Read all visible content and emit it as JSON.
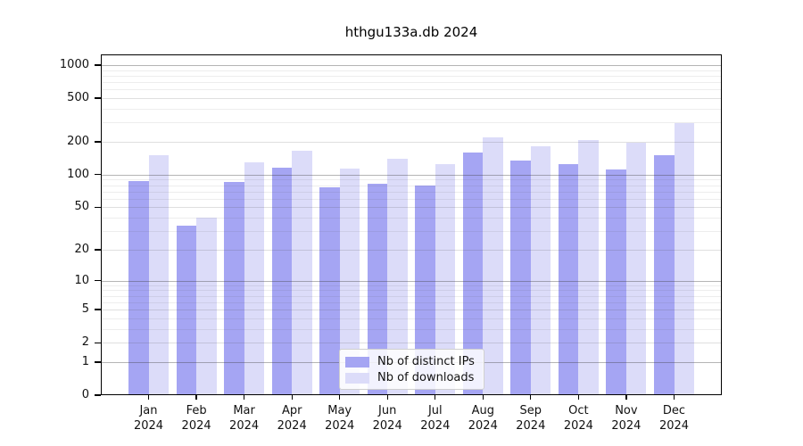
{
  "title": "hthgu133a.db 2024",
  "chart_data": {
    "type": "bar",
    "title": "hthgu133a.db 2024",
    "xlabel": "",
    "ylabel": "",
    "yscale": "log1p",
    "ylim": [
      0,
      1250
    ],
    "yticks": [
      0,
      1,
      2,
      5,
      10,
      20,
      50,
      100,
      200,
      500,
      1000
    ],
    "grid": "on",
    "legend_position": "inside-bottom-center",
    "categories": [
      "Jan",
      "Feb",
      "Mar",
      "Apr",
      "May",
      "Jun",
      "Jul",
      "Aug",
      "Sep",
      "Oct",
      "Nov",
      "Dec"
    ],
    "x_sublabel": "2024",
    "series": [
      {
        "name": "Nb of distinct IPs",
        "color": "#a5a5f3",
        "values": [
          87,
          34,
          85,
          115,
          77,
          82,
          80,
          159,
          134,
          126,
          112,
          150
        ]
      },
      {
        "name": "Nb of downloads",
        "color": "#dcdcf9",
        "values": [
          150,
          40,
          130,
          165,
          113,
          139,
          125,
          220,
          182,
          209,
          195,
          297
        ]
      }
    ]
  },
  "legend": {
    "items": [
      {
        "label": "Nb of distinct IPs",
        "color": "#a5a5f3"
      },
      {
        "label": "Nb of downloads",
        "color": "#dcdcf9"
      }
    ]
  }
}
